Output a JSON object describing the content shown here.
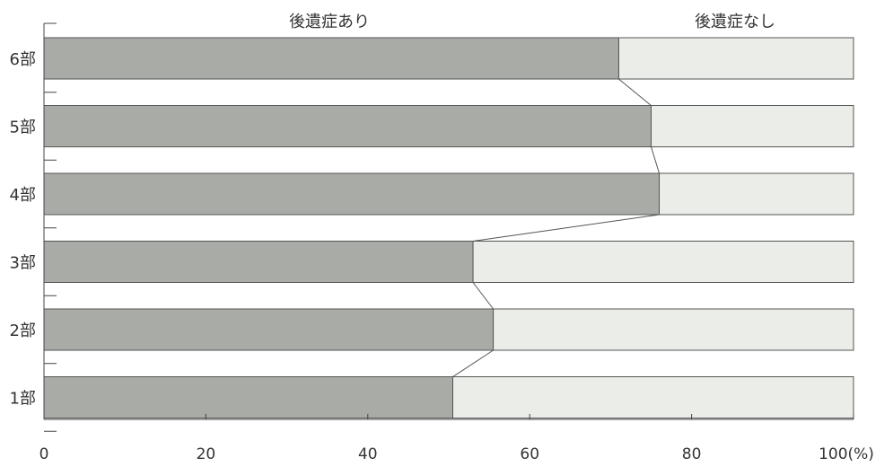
{
  "chart_data": {
    "type": "bar",
    "stacked": true,
    "orientation": "horizontal",
    "categories": [
      "6部",
      "5部",
      "4部",
      "3部",
      "2部",
      "1部"
    ],
    "series": [
      {
        "name": "後遺症あり",
        "values": [
          71,
          75,
          76,
          53,
          55.5,
          50.5
        ],
        "color": "#a9aca6"
      },
      {
        "name": "後遺症なし",
        "values": [
          29,
          25,
          24,
          47,
          44.5,
          49.5
        ],
        "color": "#ebede8"
      }
    ],
    "xlim": [
      0,
      100
    ],
    "x_ticks": [
      "0",
      "20",
      "40",
      "60",
      "80",
      "100(%)"
    ],
    "legend_placement": "top",
    "connector_lines": true,
    "grid": false
  }
}
